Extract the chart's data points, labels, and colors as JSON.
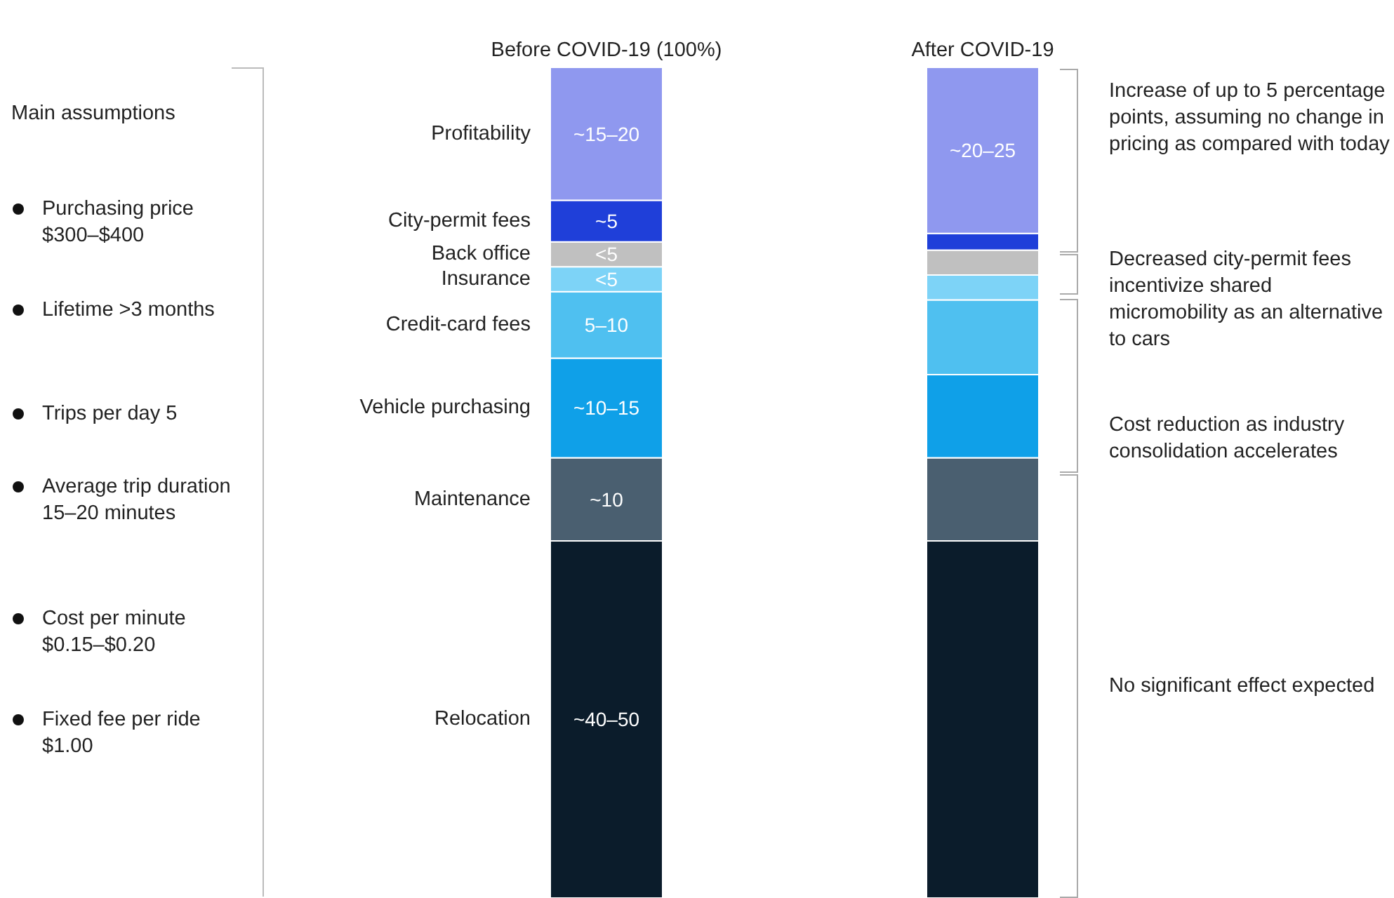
{
  "chart_data": {
    "type": "bar",
    "stacked": true,
    "ylim": [
      0,
      100
    ],
    "tick_labels": "x",
    "categories": [
      "Before COVID-19 (100%)",
      "After COVID-19"
    ],
    "series": [
      {
        "name": "Relocation",
        "color": "#0b1c2b",
        "values": [
          43,
          43
        ],
        "value_labels": [
          "~40–50",
          null
        ]
      },
      {
        "name": "Maintenance",
        "color": "#4a5f70",
        "values": [
          10,
          10
        ],
        "value_labels": [
          "~10",
          null
        ]
      },
      {
        "name": "Vehicle purchasing",
        "color": "#0fa0e8",
        "values": [
          12,
          10
        ],
        "value_labels": [
          "~10–15",
          null
        ]
      },
      {
        "name": "Credit-card fees",
        "color": "#4fc0f0",
        "values": [
          8,
          9
        ],
        "value_labels": [
          "5–10",
          null
        ]
      },
      {
        "name": "Insurance",
        "color": "#7dd3f7",
        "values": [
          3,
          3
        ],
        "value_labels": [
          "<5",
          null
        ]
      },
      {
        "name": "Back office",
        "color": "#c0c0c0",
        "values": [
          3,
          3
        ],
        "value_labels": [
          "<5",
          null
        ]
      },
      {
        "name": "City-permit fees",
        "color": "#1f3fd9",
        "values": [
          5,
          2
        ],
        "value_labels": [
          "~5",
          null
        ]
      },
      {
        "name": "Profitability",
        "color": "#8f98ef",
        "values": [
          16,
          20
        ],
        "value_labels": [
          "~15–20",
          "~20–25"
        ]
      }
    ],
    "annotations": [
      "Main assumptions",
      "Purchasing price $300–$400",
      "Lifetime >3 months",
      "Trips per day 5",
      "Average trip duration 15–20 minutes",
      "Cost per minute $0.15–$0.20",
      "Fixed fee per ride $1.00",
      "Increase of up to 5 percentage points, assuming no change in pricing as compared with today",
      "Decreased city-permit fees incentivize shared micromobility as an alternative to cars",
      "Cost reduction as industry consolidation accelerates",
      "No significant effect expected"
    ]
  }
}
